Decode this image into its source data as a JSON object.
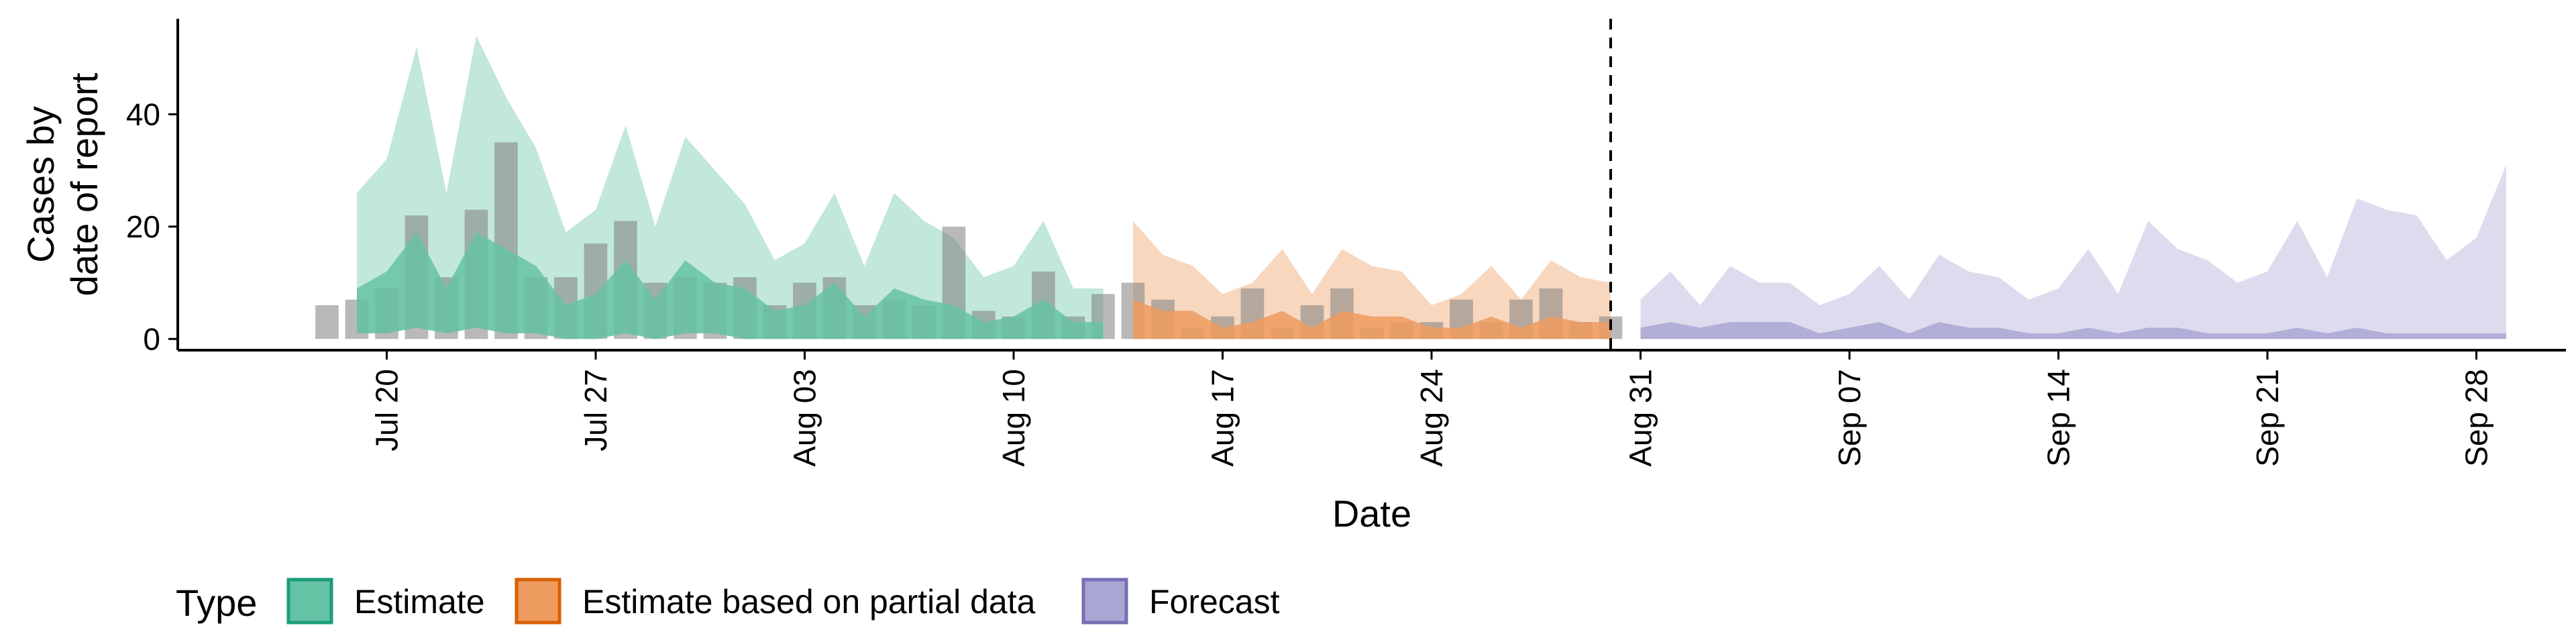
{
  "chart_data": {
    "type": "area",
    "xlabel": "Date",
    "ylabel_lines": [
      "Cases by",
      "date of report"
    ],
    "year": 2020,
    "xlim": [
      "2020-07-13",
      "2020-10-01"
    ],
    "ylim": [
      -2,
      57
    ],
    "y_ticks": [
      0,
      20,
      40
    ],
    "x_ticks": [
      {
        "date": "2020-07-20",
        "label": "Jul 20"
      },
      {
        "date": "2020-07-27",
        "label": "Jul 27"
      },
      {
        "date": "2020-08-03",
        "label": "Aug 03"
      },
      {
        "date": "2020-08-10",
        "label": "Aug 10"
      },
      {
        "date": "2020-08-17",
        "label": "Aug 17"
      },
      {
        "date": "2020-08-24",
        "label": "Aug 24"
      },
      {
        "date": "2020-08-31",
        "label": "Aug 31"
      },
      {
        "date": "2020-09-07",
        "label": "Sep 07"
      },
      {
        "date": "2020-09-14",
        "label": "Sep 14"
      },
      {
        "date": "2020-09-21",
        "label": "Sep 21"
      },
      {
        "date": "2020-09-28",
        "label": "Sep 28"
      }
    ],
    "forecast_line_date": "2020-08-30",
    "grid": false,
    "legend": {
      "title": "Type",
      "placement": "bottom",
      "entries": [
        {
          "key": "estimate",
          "label": "Estimate",
          "fill": "#66c2a5",
          "stroke": "#1b9e77"
        },
        {
          "key": "partial",
          "label": "Estimate based on partial data",
          "fill": "#ee9b5f",
          "stroke": "#d95f02"
        },
        {
          "key": "forecast",
          "label": "Forecast",
          "fill": "#a9a6d3",
          "stroke": "#7570b3"
        }
      ]
    },
    "series": [
      {
        "key": "estimate",
        "x": [
          "2020-07-19",
          "2020-07-20",
          "2020-07-21",
          "2020-07-22",
          "2020-07-23",
          "2020-07-24",
          "2020-07-25",
          "2020-07-26",
          "2020-07-27",
          "2020-07-28",
          "2020-07-29",
          "2020-07-30",
          "2020-07-31",
          "2020-08-01",
          "2020-08-02",
          "2020-08-03",
          "2020-08-04",
          "2020-08-05",
          "2020-08-06",
          "2020-08-07",
          "2020-08-08",
          "2020-08-09",
          "2020-08-10",
          "2020-08-11",
          "2020-08-12",
          "2020-08-13"
        ],
        "upper": [
          26,
          32,
          52,
          26,
          54,
          43,
          34,
          19,
          23,
          38,
          20,
          36,
          30,
          24,
          14,
          17,
          26,
          13,
          26,
          21,
          18,
          11,
          13,
          21,
          9,
          9
        ],
        "median": [
          9,
          12,
          19,
          9,
          19,
          16,
          13,
          6,
          8,
          14,
          7,
          14,
          10,
          9,
          5,
          6,
          10,
          4,
          9,
          7,
          6,
          3,
          4,
          7,
          3,
          3
        ],
        "lower": [
          1,
          1,
          2,
          1,
          2,
          1,
          1,
          0,
          0,
          1,
          0,
          1,
          1,
          0,
          0,
          0,
          0,
          0,
          0,
          0,
          0,
          0,
          0,
          0,
          0,
          0
        ]
      },
      {
        "key": "partial",
        "x": [
          "2020-08-14",
          "2020-08-15",
          "2020-08-16",
          "2020-08-17",
          "2020-08-18",
          "2020-08-19",
          "2020-08-20",
          "2020-08-21",
          "2020-08-22",
          "2020-08-23",
          "2020-08-24",
          "2020-08-25",
          "2020-08-26",
          "2020-08-27",
          "2020-08-28",
          "2020-08-29",
          "2020-08-30"
        ],
        "upper": [
          21,
          15,
          13,
          8,
          10,
          16,
          8,
          16,
          13,
          12,
          6,
          8,
          13,
          7,
          14,
          11,
          10
        ],
        "median": [
          7,
          5,
          5,
          2,
          3,
          5,
          2,
          5,
          4,
          4,
          2,
          2,
          4,
          2,
          4,
          3,
          3
        ],
        "lower": [
          0,
          0,
          0,
          0,
          0,
          0,
          0,
          0,
          0,
          0,
          0,
          0,
          0,
          0,
          0,
          0,
          0
        ]
      },
      {
        "key": "forecast",
        "x": [
          "2020-08-31",
          "2020-09-01",
          "2020-09-02",
          "2020-09-03",
          "2020-09-04",
          "2020-09-05",
          "2020-09-06",
          "2020-09-07",
          "2020-09-08",
          "2020-09-09",
          "2020-09-10",
          "2020-09-11",
          "2020-09-12",
          "2020-09-13",
          "2020-09-14",
          "2020-09-15",
          "2020-09-16",
          "2020-09-17",
          "2020-09-18",
          "2020-09-19",
          "2020-09-20",
          "2020-09-21",
          "2020-09-22",
          "2020-09-23",
          "2020-09-24",
          "2020-09-25",
          "2020-09-26",
          "2020-09-27",
          "2020-09-28",
          "2020-09-29"
        ],
        "upper": [
          7,
          12,
          6,
          13,
          10,
          10,
          6,
          8,
          13,
          7,
          15,
          12,
          11,
          7,
          9,
          16,
          8,
          21,
          16,
          14,
          10,
          12,
          21,
          11,
          25,
          23,
          22,
          14,
          18,
          31
        ],
        "median": [
          2,
          3,
          2,
          3,
          3,
          3,
          1,
          2,
          3,
          1,
          3,
          2,
          2,
          1,
          1,
          2,
          1,
          2,
          2,
          1,
          1,
          1,
          2,
          1,
          2,
          1,
          1,
          1,
          1,
          1
        ],
        "lower": [
          0,
          0,
          0,
          0,
          0,
          0,
          0,
          0,
          0,
          0,
          0,
          0,
          0,
          0,
          0,
          0,
          0,
          0,
          0,
          0,
          0,
          0,
          0,
          0,
          0,
          0,
          0,
          0,
          0,
          0
        ]
      }
    ],
    "reported_cases": {
      "x": [
        "2020-07-18",
        "2020-07-19",
        "2020-07-20",
        "2020-07-21",
        "2020-07-22",
        "2020-07-23",
        "2020-07-24",
        "2020-07-25",
        "2020-07-26",
        "2020-07-27",
        "2020-07-28",
        "2020-07-29",
        "2020-07-30",
        "2020-07-31",
        "2020-08-01",
        "2020-08-02",
        "2020-08-03",
        "2020-08-04",
        "2020-08-05",
        "2020-08-06",
        "2020-08-07",
        "2020-08-08",
        "2020-08-09",
        "2020-08-10",
        "2020-08-11",
        "2020-08-12",
        "2020-08-13",
        "2020-08-14",
        "2020-08-15",
        "2020-08-16",
        "2020-08-17",
        "2020-08-18",
        "2020-08-19",
        "2020-08-20",
        "2020-08-21",
        "2020-08-22",
        "2020-08-23",
        "2020-08-24",
        "2020-08-25",
        "2020-08-26",
        "2020-08-27",
        "2020-08-28",
        "2020-08-29",
        "2020-08-30"
      ],
      "values": [
        6,
        7,
        9,
        22,
        11,
        23,
        35,
        11,
        11,
        17,
        21,
        10,
        11,
        10,
        11,
        6,
        10,
        11,
        6,
        7,
        6,
        20,
        5,
        4,
        12,
        4,
        8,
        10,
        7,
        2,
        4,
        9,
        2,
        6,
        9,
        2,
        3,
        3,
        7,
        3,
        7,
        9,
        3,
        4
      ]
    }
  }
}
